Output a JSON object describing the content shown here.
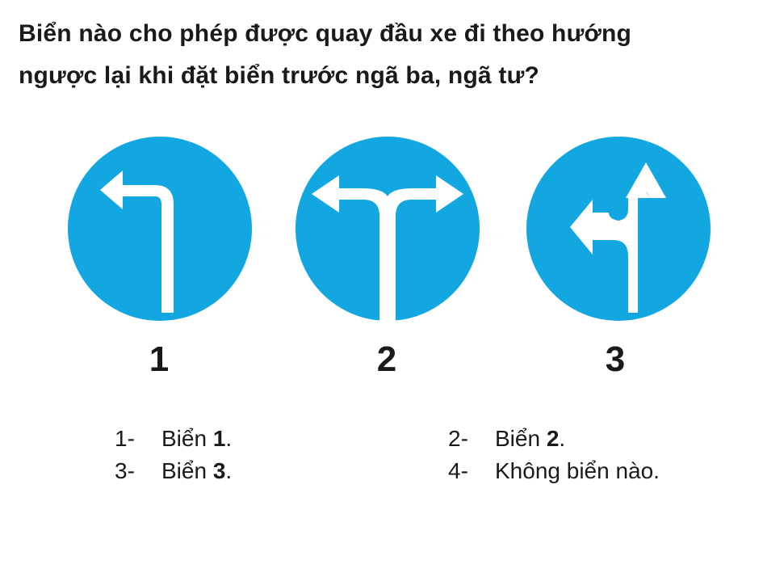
{
  "question": {
    "line1": "Biển nào cho phép được quay đầu xe đi theo hướng",
    "line2": "ngược lại khi đặt biển trước ngã ba, ngã tư?"
  },
  "colors": {
    "sign_blue": "#13a7e2",
    "arrow": "#ffffff",
    "text": "#1a1a1a"
  },
  "signs": [
    {
      "number": "1",
      "icon": "turn-left-arrow-icon"
    },
    {
      "number": "2",
      "icon": "left-right-fork-arrow-icon"
    },
    {
      "number": "3",
      "icon": "straight-or-left-arrow-icon"
    }
  ],
  "answers": [
    {
      "num": "1-",
      "prefix": "Biển",
      "bold": "1",
      "suffix": "."
    },
    {
      "num": "2-",
      "prefix": "Biển",
      "bold": "2",
      "suffix": "."
    },
    {
      "num": "3-",
      "prefix": "Biển",
      "bold": "3",
      "suffix": "."
    },
    {
      "num": "4-",
      "prefix": "Không biển nào.",
      "bold": "",
      "suffix": ""
    }
  ]
}
